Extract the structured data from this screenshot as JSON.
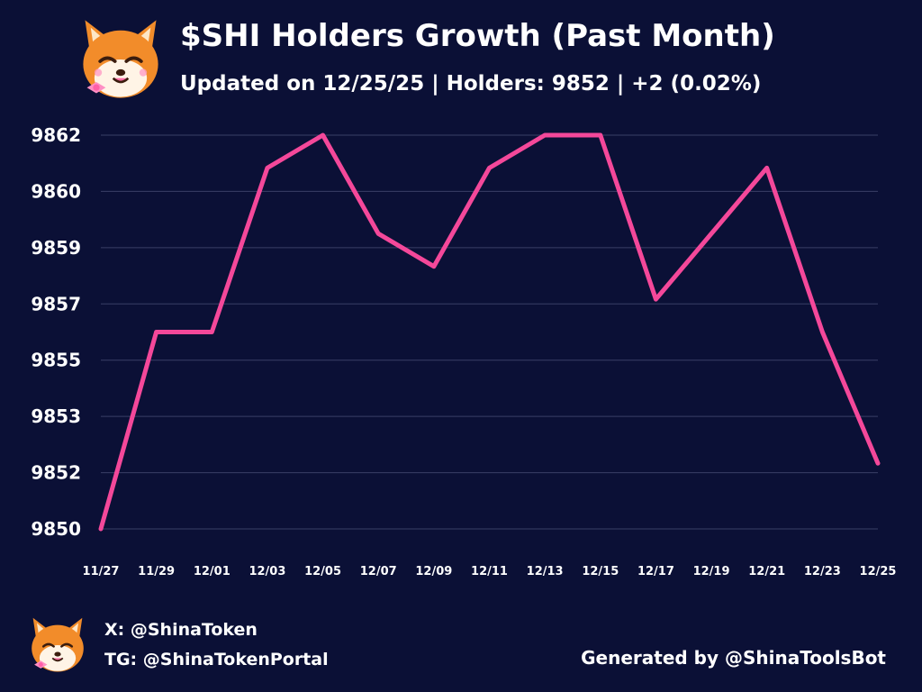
{
  "header": {
    "title": "$SHI Holders Growth (Past Month)",
    "subtitle": "Updated on 12/25/25 | Holders: 9852 | +2 (0.02%)"
  },
  "footer": {
    "x_handle": "X: @ShinaToken",
    "tg_handle": "TG: @ShinaTokenPortal",
    "generated_by": "Generated by @ShinaToolsBot"
  },
  "colors": {
    "background": "#0b1036",
    "line": "#f4489a",
    "grid": "#3a3f66",
    "text": "#ffffff"
  },
  "chart_data": {
    "type": "line",
    "title": "$SHI Holders Growth (Past Month)",
    "xlabel": "",
    "ylabel": "",
    "x_tick_labels": [
      "11/27",
      "11/29",
      "12/01",
      "12/03",
      "12/05",
      "12/07",
      "12/09",
      "12/11",
      "12/13",
      "12/15",
      "12/17",
      "12/19",
      "12/21",
      "12/23",
      "12/25"
    ],
    "y_tick_labels": [
      "9850",
      "9852",
      "9853",
      "9855",
      "9857",
      "9859",
      "9860",
      "9862"
    ],
    "ylim": [
      9850,
      9862
    ],
    "grid": true,
    "legend": "none",
    "series": [
      {
        "x": [
          "11/27",
          "11/29",
          "12/01",
          "12/03",
          "12/05",
          "12/07",
          "12/09",
          "12/11",
          "12/13",
          "12/15",
          "12/17",
          "12/19",
          "12/21",
          "12/23",
          "12/25"
        ],
        "values": [
          9850,
          9856,
          9856,
          9861,
          9862,
          9859,
          9858,
          9861,
          9862,
          9862,
          9857,
          9859,
          9861,
          9856,
          9852
        ]
      }
    ]
  }
}
